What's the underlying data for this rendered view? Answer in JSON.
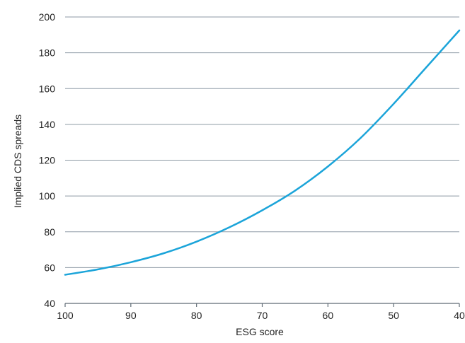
{
  "chart_data": {
    "type": "line",
    "title": "",
    "xlabel": "ESG score",
    "ylabel": "Implied CDS spreads",
    "xlim": [
      100,
      40
    ],
    "ylim": [
      40,
      200
    ],
    "x_reversed": true,
    "xticks": [
      100,
      90,
      80,
      70,
      60,
      50,
      40
    ],
    "yticks": [
      40,
      60,
      80,
      100,
      120,
      140,
      160,
      180,
      200
    ],
    "grid": "horizontal",
    "legend": "none",
    "series": [
      {
        "color": "#1ba4d9",
        "x": [
          100,
          95,
          90,
          85,
          80,
          75,
          70,
          65,
          60,
          55,
          50,
          45,
          40
        ],
        "values": [
          56,
          59,
          63,
          68,
          74.5,
          82.5,
          92,
          103,
          116.5,
          132.5,
          151.5,
          172,
          192.5
        ]
      }
    ]
  }
}
